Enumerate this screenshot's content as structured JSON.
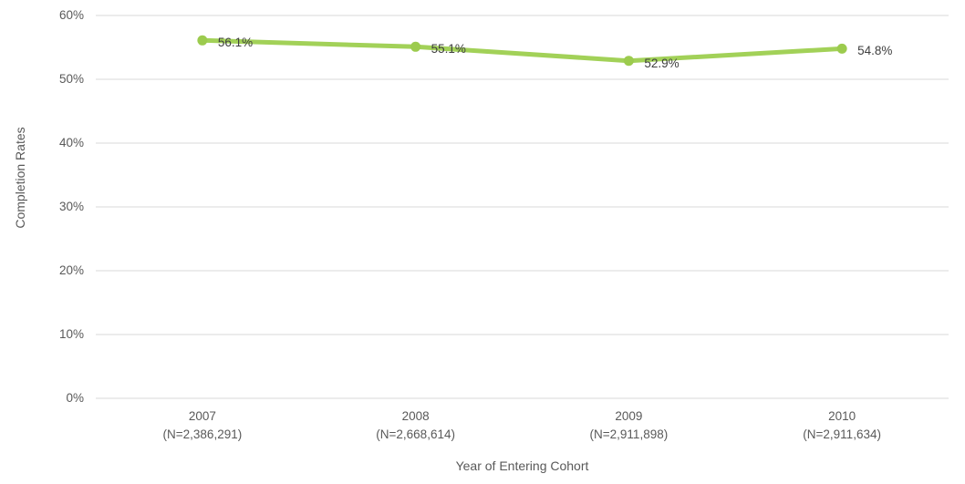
{
  "chart_data": {
    "type": "line",
    "title": "",
    "xlabel": "Year of Entering Cohort",
    "ylabel": "Completion Rates",
    "categories": [
      "2007",
      "2008",
      "2009",
      "2010"
    ],
    "category_sublabels": [
      "(N=2,386,291)",
      "(N=2,668,614)",
      "(N=2,911,898)",
      "(N=2,911,634)"
    ],
    "series": [
      {
        "name": "Completion Rates",
        "values": [
          56.1,
          55.1,
          52.9,
          54.8
        ]
      }
    ],
    "data_labels": [
      "56.1%",
      "55.1%",
      "52.9%",
      "54.8%"
    ],
    "ylim": [
      0,
      60
    ],
    "ytick_values": [
      0,
      10,
      20,
      30,
      40,
      50,
      60
    ],
    "ytick_labels": [
      "0%",
      "10%",
      "20%",
      "30%",
      "40%",
      "50%",
      "60%"
    ],
    "grid": "horizontal",
    "legend": "none",
    "colors": {
      "line": "#a2d158",
      "marker": "#9ccb4e",
      "gridline": "#d9d9d9",
      "axis_text": "#595959",
      "data_label_text": "#404040"
    }
  }
}
